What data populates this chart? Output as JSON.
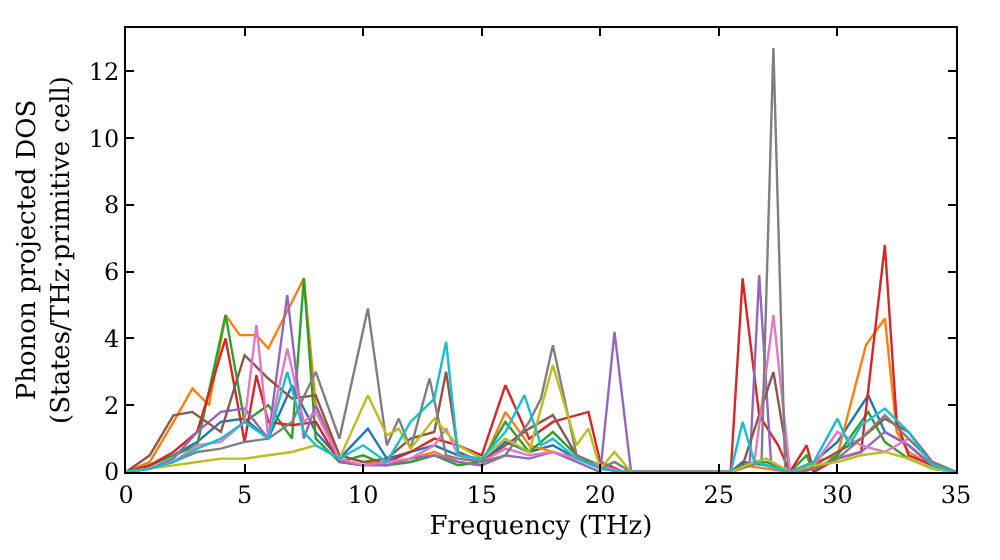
{
  "chart_data": {
    "type": "line",
    "xlabel": "Frequency (THz)",
    "ylabel": "Phonon projected DOS\n(States/THz·primitive cell)",
    "xlim": [
      0,
      35
    ],
    "xticks": [
      0,
      5,
      10,
      15,
      20,
      25,
      30,
      35
    ],
    "ylim": [
      0,
      13.3
    ],
    "yticks": [
      0,
      2,
      4,
      6,
      8,
      10,
      12
    ],
    "marker": "none",
    "line_style": "solid",
    "series": [
      {
        "color": "#1f77b4",
        "x": [
          0,
          1,
          2,
          3,
          4,
          5,
          6,
          7,
          8,
          9,
          10.2,
          11,
          12,
          13,
          14,
          15,
          16,
          17,
          18,
          19,
          20,
          21,
          25.5,
          26,
          27,
          28,
          29,
          30,
          31.3,
          32,
          33,
          34,
          35
        ],
        "values": [
          0,
          0.2,
          0.5,
          0.9,
          1.5,
          1.6,
          1.0,
          2.6,
          1.2,
          0.4,
          1.3,
          0.4,
          0.6,
          0.8,
          0.5,
          0.3,
          0.9,
          0.6,
          0.8,
          0.4,
          0.2,
          0,
          0,
          0.3,
          0.2,
          0,
          0.3,
          0.9,
          2.3,
          1.2,
          0.8,
          0.2,
          0
        ]
      },
      {
        "color": "#ff7f0e",
        "x": [
          0,
          1,
          2,
          2.8,
          3.5,
          4.2,
          4.8,
          5.5,
          6,
          7.5,
          8,
          9,
          10,
          11,
          12,
          13,
          14,
          15,
          16,
          17,
          18,
          19,
          20,
          21,
          25.5,
          26,
          27,
          28,
          29,
          30,
          31.2,
          32,
          32.5,
          33,
          34,
          35
        ],
        "values": [
          0,
          0.3,
          1.5,
          2.5,
          2.0,
          4.7,
          4.1,
          4.1,
          3.7,
          5.8,
          2.0,
          0.5,
          0.3,
          0.2,
          0.4,
          0.6,
          0.3,
          0.2,
          1.8,
          0.8,
          0.6,
          0.4,
          0.2,
          0,
          0,
          0.2,
          0.1,
          0,
          0.3,
          0.5,
          3.8,
          4.6,
          1.2,
          0.6,
          0.2,
          0
        ]
      },
      {
        "color": "#2ca02c",
        "x": [
          0,
          1,
          2,
          3,
          4.2,
          5,
          6,
          7,
          7.5,
          8,
          9,
          10,
          11,
          12,
          13,
          14,
          15,
          16,
          17,
          18,
          19,
          20,
          21,
          25.5,
          26,
          27,
          28,
          28.7,
          29,
          30,
          31.3,
          32,
          33,
          34,
          35
        ],
        "values": [
          0,
          0.2,
          0.5,
          0.8,
          4.7,
          1.5,
          2.0,
          1.0,
          5.8,
          1.0,
          0.3,
          0.5,
          0.2,
          0.3,
          0.5,
          0.2,
          0.3,
          1.5,
          0.6,
          1.2,
          0.5,
          0.2,
          0,
          0,
          0.2,
          0.3,
          0,
          0.5,
          0,
          0.5,
          1.8,
          0.9,
          0.4,
          0.1,
          0
        ]
      },
      {
        "color": "#d62728",
        "x": [
          0,
          1,
          2,
          3,
          4.2,
          5,
          5.5,
          6,
          7,
          8,
          9,
          10,
          11,
          12,
          13,
          14,
          15,
          16,
          17,
          18,
          19.5,
          20,
          21,
          25.5,
          26,
          26.7,
          27.5,
          28,
          28.7,
          29,
          30,
          31,
          32,
          32.5,
          33,
          34,
          35
        ],
        "values": [
          0,
          0.2,
          0.6,
          1.2,
          4.0,
          0.9,
          2.9,
          1.5,
          1.4,
          1.5,
          0.3,
          0.2,
          0.3,
          0.6,
          1.0,
          0.8,
          0.5,
          2.6,
          1.0,
          1.5,
          1.8,
          0.3,
          0,
          0,
          5.8,
          1.7,
          0.8,
          0,
          0.8,
          0,
          0.4,
          0.6,
          6.8,
          1.5,
          0.5,
          0.2,
          0
        ]
      },
      {
        "color": "#9467bd",
        "x": [
          0,
          1,
          2,
          3,
          4,
          5,
          6,
          6.8,
          7.5,
          8,
          9,
          10,
          11,
          12,
          13,
          14,
          15,
          16,
          17,
          18,
          19,
          20,
          20.6,
          21.3,
          25.5,
          26.3,
          26.7,
          27.2,
          28,
          29,
          30,
          31,
          32,
          33,
          34,
          35
        ],
        "values": [
          0,
          0.1,
          0.4,
          1.2,
          1.8,
          1.9,
          1.0,
          5.3,
          1.0,
          2.0,
          0.3,
          0.2,
          0.2,
          0.4,
          0.5,
          0.3,
          0.2,
          0.5,
          0.4,
          0.6,
          0.3,
          0,
          4.2,
          0,
          0,
          0.2,
          5.9,
          0.3,
          0,
          0.1,
          0.4,
          0.6,
          1.2,
          0.8,
          0.2,
          0
        ]
      },
      {
        "color": "#8c564b",
        "x": [
          0,
          1,
          2,
          2.8,
          4,
          5,
          6,
          7,
          8,
          9,
          10,
          11,
          12,
          13,
          13.5,
          14,
          15,
          16,
          17,
          18,
          19,
          20,
          21,
          25.5,
          26,
          27.3,
          28,
          29,
          30,
          31,
          32,
          33,
          34,
          35
        ],
        "values": [
          0,
          0.5,
          1.7,
          1.8,
          1.2,
          3.5,
          2.8,
          2.2,
          2.3,
          0.5,
          0.3,
          0.4,
          1.0,
          1.2,
          3.0,
          0.6,
          0.3,
          0.8,
          1.3,
          1.7,
          0.5,
          0.1,
          0,
          0,
          0.2,
          3.0,
          0,
          0.2,
          0.6,
          1.0,
          1.6,
          1.2,
          0.3,
          0
        ]
      },
      {
        "color": "#e377c2",
        "x": [
          0,
          1,
          2,
          3,
          4,
          5,
          5.5,
          6,
          6.8,
          7.5,
          8,
          9,
          10,
          11,
          12,
          13,
          13.5,
          14,
          15,
          16,
          17,
          18,
          19,
          20,
          21,
          25.5,
          26.5,
          27.3,
          28,
          29,
          30,
          31,
          32,
          33,
          34,
          35
        ],
        "values": [
          0,
          0.1,
          0.3,
          0.8,
          0.9,
          1.5,
          4.4,
          1.0,
          3.7,
          1.5,
          1.8,
          0.4,
          0.2,
          0.3,
          0.4,
          0.8,
          1.3,
          0.5,
          0.3,
          0.7,
          0.5,
          0.6,
          0.4,
          0.2,
          0,
          0,
          0.3,
          4.7,
          0,
          0.2,
          1.2,
          0.8,
          0.6,
          1.0,
          0.3,
          0
        ]
      },
      {
        "color": "#7f7f7f",
        "x": [
          0,
          1,
          2,
          3,
          4,
          5,
          6,
          7,
          8,
          9,
          10.2,
          11,
          11.5,
          12,
          12.8,
          13.5,
          14,
          15,
          16,
          17,
          17.5,
          18,
          19,
          20,
          20.6,
          21.3,
          25.5,
          26.8,
          27.3,
          27.8,
          28.5,
          29,
          30,
          31,
          32,
          33,
          34,
          35
        ],
        "values": [
          0,
          0.1,
          0.3,
          0.6,
          0.7,
          0.9,
          1.0,
          1.5,
          3.0,
          1.0,
          4.9,
          0.8,
          1.6,
          0.7,
          2.8,
          0.5,
          0.4,
          0.3,
          0.5,
          1.5,
          2.2,
          3.8,
          0.5,
          0.1,
          0.3,
          0,
          0,
          0.3,
          12.7,
          0,
          0,
          0.1,
          0.4,
          1.0,
          1.7,
          1.0,
          0.3,
          0
        ]
      },
      {
        "color": "#bcbd22",
        "x": [
          0,
          1,
          2,
          3,
          4,
          5,
          6,
          7,
          8,
          9,
          10.2,
          11,
          11.5,
          12,
          13,
          14,
          15,
          16,
          17,
          18,
          19,
          19.5,
          20,
          20.6,
          21.3,
          25.5,
          26.5,
          27,
          28,
          29,
          30,
          31,
          32,
          33,
          34,
          35
        ],
        "values": [
          0,
          0.1,
          0.2,
          0.3,
          0.4,
          0.4,
          0.5,
          0.6,
          0.8,
          0.4,
          2.3,
          1.1,
          1.3,
          0.7,
          1.6,
          0.8,
          0.4,
          1.0,
          0.6,
          3.2,
          0.8,
          1.3,
          0.1,
          0.6,
          0,
          0,
          0.3,
          0.4,
          0,
          0.2,
          0.3,
          0.5,
          0.6,
          0.4,
          0.1,
          0
        ]
      },
      {
        "color": "#17becf",
        "x": [
          0,
          1,
          2,
          3,
          4,
          5,
          6,
          6.8,
          7.5,
          8,
          9,
          10,
          11,
          12,
          13,
          13.5,
          14,
          15,
          16,
          16.8,
          17.5,
          18,
          19,
          20,
          21,
          25.5,
          26,
          26.5,
          28,
          29,
          30,
          30.5,
          31,
          32,
          33,
          34,
          35
        ],
        "values": [
          0,
          0.1,
          0.3,
          0.7,
          1.0,
          1.5,
          1.0,
          3.0,
          1.2,
          0.8,
          0.4,
          0.8,
          0.3,
          1.5,
          2.2,
          3.9,
          0.5,
          0.4,
          1.2,
          2.3,
          0.8,
          1.0,
          0.4,
          0.1,
          0,
          0,
          1.5,
          0.3,
          0,
          0.3,
          1.6,
          0.8,
          1.4,
          1.9,
          1.2,
          0.2,
          0
        ]
      }
    ]
  }
}
